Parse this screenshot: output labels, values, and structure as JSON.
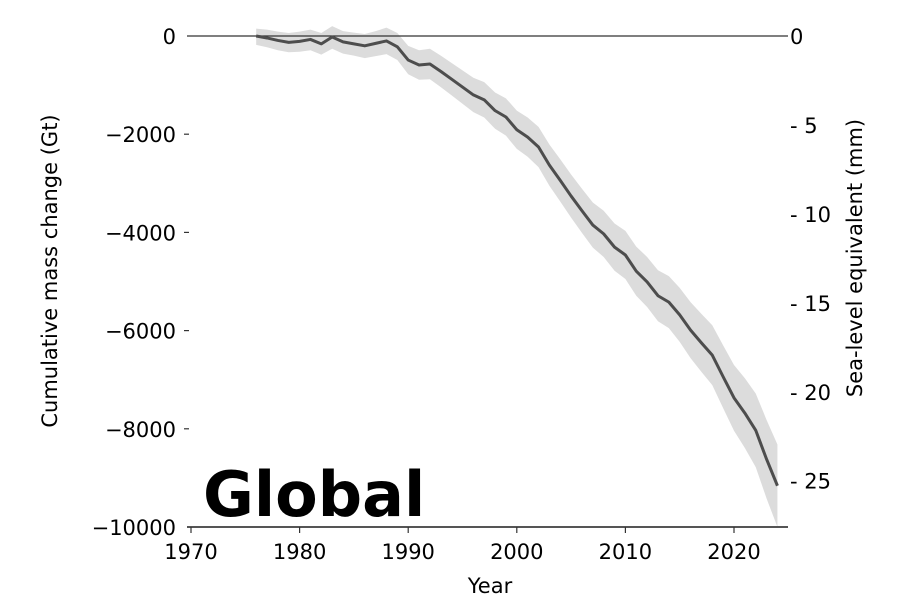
{
  "chart_data": {
    "type": "line",
    "title": "",
    "annotation": "Global",
    "xlabel": "Year",
    "ylabel": "Cumulative mass change (Gt)",
    "ylabel_right": "Sea-level equivalent (mm)",
    "xlim": [
      1970,
      2025
    ],
    "ylim": [
      -10000,
      0
    ],
    "ylim_right": [
      -27.6,
      0
    ],
    "grid": false,
    "legend": null,
    "x_ticks": [
      1970,
      1980,
      1990,
      2000,
      2010,
      2020
    ],
    "x_tick_labels": [
      "1970",
      "1980",
      "1990",
      "2000",
      "2010",
      "2020"
    ],
    "y_ticks": [
      0,
      -2000,
      -4000,
      -6000,
      -8000,
      -10000
    ],
    "y_tick_labels": [
      "0",
      "−2000",
      "−4000",
      "−6000",
      "−8000",
      "−10000"
    ],
    "y_right_ticks": [
      0,
      -5,
      -10,
      -15,
      -20,
      -25
    ],
    "y_right_tick_labels": [
      "0",
      "- 5",
      "- 10",
      "- 15",
      "- 20",
      "- 25"
    ],
    "reference_line": {
      "y": 0,
      "color": "#333333"
    },
    "series": [
      {
        "name": "Cumulative mass change",
        "color": "#4d4d4d",
        "band_color": "#dcdcdc",
        "x": [
          1976,
          1977,
          1978,
          1979,
          1980,
          1981,
          1982,
          1983,
          1984,
          1985,
          1986,
          1987,
          1988,
          1989,
          1990,
          1991,
          1992,
          1993,
          1994,
          1995,
          1996,
          1997,
          1998,
          1999,
          2000,
          2001,
          2002,
          2003,
          2004,
          2005,
          2006,
          2007,
          2008,
          2009,
          2010,
          2011,
          2012,
          2013,
          2014,
          2015,
          2016,
          2017,
          2018,
          2019,
          2020,
          2021,
          2022,
          2023,
          2024
        ],
        "values": [
          0,
          -40,
          -90,
          -130,
          -110,
          -70,
          -160,
          -20,
          -120,
          -160,
          -200,
          -150,
          -100,
          -220,
          -490,
          -590,
          -570,
          -720,
          -880,
          -1040,
          -1200,
          -1300,
          -1520,
          -1650,
          -1910,
          -2060,
          -2260,
          -2630,
          -2940,
          -3260,
          -3560,
          -3850,
          -4030,
          -4300,
          -4460,
          -4790,
          -5010,
          -5290,
          -5420,
          -5680,
          -5990,
          -6250,
          -6500,
          -6940,
          -7370,
          -7680,
          -8030,
          -8620,
          -9160
        ],
        "lower": [
          -180,
          -230,
          -290,
          -330,
          -320,
          -290,
          -380,
          -260,
          -360,
          -400,
          -450,
          -410,
          -370,
          -490,
          -780,
          -890,
          -880,
          -1040,
          -1210,
          -1380,
          -1550,
          -1660,
          -1890,
          -2030,
          -2300,
          -2460,
          -2670,
          -3050,
          -3370,
          -3700,
          -4010,
          -4310,
          -4500,
          -4780,
          -4950,
          -5290,
          -5520,
          -5810,
          -5950,
          -6230,
          -6560,
          -6840,
          -7110,
          -7580,
          -8040,
          -8390,
          -8780,
          -9420,
          -10000
        ],
        "upper": [
          150,
          130,
          90,
          60,
          90,
          130,
          60,
          200,
          100,
          70,
          40,
          100,
          170,
          60,
          -200,
          -290,
          -260,
          -400,
          -550,
          -700,
          -850,
          -940,
          -1150,
          -1270,
          -1520,
          -1660,
          -1850,
          -2210,
          -2510,
          -2820,
          -3110,
          -3390,
          -3560,
          -3820,
          -3970,
          -4290,
          -4500,
          -4770,
          -4890,
          -5130,
          -5420,
          -5660,
          -5890,
          -6300,
          -6700,
          -6970,
          -7280,
          -7820,
          -8320
        ]
      }
    ]
  }
}
